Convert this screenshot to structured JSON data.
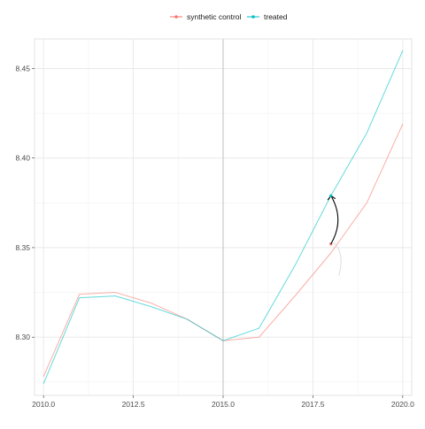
{
  "chart_data": {
    "type": "line",
    "title": "",
    "xlabel": "",
    "ylabel": "",
    "xlim": [
      2009.75,
      2020.25
    ],
    "ylim": [
      8.2675,
      8.4665
    ],
    "x_ticks": [
      2010.0,
      2012.5,
      2015.0,
      2017.5,
      2020.0
    ],
    "x_tick_labels": [
      "2010.0",
      "2012.5",
      "2015.0",
      "2017.5",
      "2020.0"
    ],
    "y_ticks": [
      8.3,
      8.35,
      8.4,
      8.45
    ],
    "y_tick_labels": [
      "8.30",
      "8.35",
      "8.40",
      "8.45"
    ],
    "grid": true,
    "legend_position": "top",
    "intervention_x": 2015,
    "series": [
      {
        "name": "synthetic control",
        "color": "#F8766D",
        "x": [
          2010,
          2011,
          2012,
          2013,
          2014,
          2015,
          2016,
          2017,
          2018,
          2019,
          2020
        ],
        "values": [
          8.278,
          8.324,
          8.325,
          8.319,
          8.31,
          8.298,
          8.3,
          8.323,
          8.347,
          8.375,
          8.419
        ]
      },
      {
        "name": "treated",
        "color": "#00BFC4",
        "x": [
          2010,
          2011,
          2012,
          2013,
          2014,
          2015,
          2016,
          2017,
          2018,
          2019,
          2020
        ],
        "values": [
          8.274,
          8.322,
          8.323,
          8.317,
          8.31,
          8.298,
          8.305,
          8.34,
          8.379,
          8.414,
          8.46
        ]
      }
    ],
    "annotation": {
      "type": "curved-arrow",
      "from": [
        2018,
        8.352
      ],
      "to": [
        2018,
        8.379
      ]
    }
  }
}
